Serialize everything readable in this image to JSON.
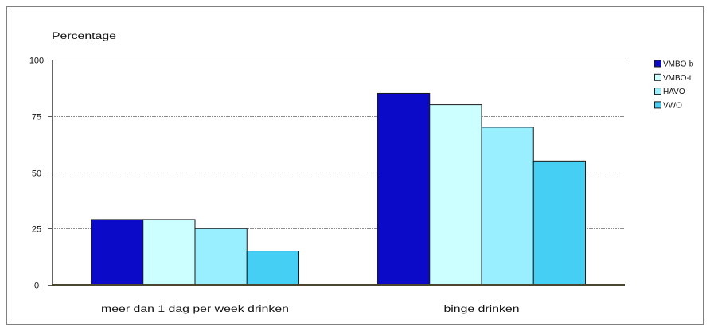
{
  "chart_data": {
    "type": "bar",
    "ylabel": "Percentage",
    "categories": [
      "meer dan 1 dag per week drinken",
      "binge drinken"
    ],
    "series": [
      {
        "name": "VMBO-b",
        "color": "#0a0ac8",
        "values": [
          29,
          85
        ]
      },
      {
        "name": "VMBO-t",
        "color": "#ccffff",
        "values": [
          29,
          80
        ]
      },
      {
        "name": "HAVO",
        "color": "#99eeff",
        "values": [
          25,
          70
        ]
      },
      {
        "name": "VWO",
        "color": "#45cff5",
        "values": [
          15,
          55
        ]
      }
    ],
    "ylim": [
      0,
      100
    ],
    "yticks": [
      0,
      25,
      50,
      75,
      100
    ],
    "grid": true,
    "legend": "top-right"
  }
}
